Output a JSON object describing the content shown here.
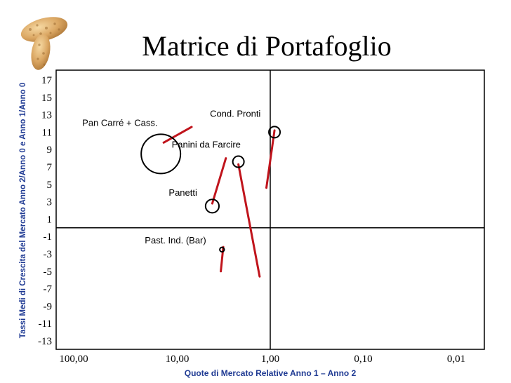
{
  "chart_data": {
    "type": "scatter",
    "title": "Matrice di Portafoglio",
    "xlabel": "Quote di Mercato Relative Anno 1 – Anno 2",
    "ylabel": "Tassi Medi di Crescita del Mercato Anno 2/Anno 0 e Anno 1/Anno 0",
    "x_scale": "log-reversed",
    "xlim": [
      100,
      0.01
    ],
    "ylim": [
      -13,
      17
    ],
    "x_ticks": [
      "100,00",
      "10,00",
      "1,00",
      "0,10",
      "0,01"
    ],
    "y_ticks": [
      "17",
      "15",
      "13",
      "11",
      "9",
      "7",
      "5",
      "3",
      "1",
      "-1",
      "-3",
      "-5",
      "-7",
      "-9",
      "-11",
      "-13"
    ],
    "quadrant_dividers": {
      "x": 1,
      "y": 0
    },
    "bubble_color": "#000000",
    "trail_color": "#c0141c",
    "series": [
      {
        "name": "Pan Carré + Cass.",
        "x": 15,
        "y": 8.5,
        "size": 3.5,
        "trail": {
          "from": [
            14,
            9.8
          ],
          "to": [
            7,
            11.6
          ]
        }
      },
      {
        "name": "Cond. Pronti",
        "x": 0.9,
        "y": 11.0,
        "size": 1.0,
        "trail": {
          "from": [
            1.1,
            4.6
          ],
          "to": [
            0.9,
            11.2
          ]
        }
      },
      {
        "name": "Panini da Farcire",
        "x": 2.2,
        "y": 7.6,
        "size": 1.0,
        "trail": {
          "from": [
            2.2,
            7.3
          ],
          "to": [
            1.3,
            -5.6
          ]
        }
      },
      {
        "name": "Panetti",
        "x": 4.2,
        "y": 2.5,
        "size": 1.2,
        "trail": {
          "from": [
            4.2,
            2.8
          ],
          "to": [
            3.0,
            8.0
          ]
        }
      },
      {
        "name": "Past. Ind. (Bar)",
        "x": 3.3,
        "y": -2.5,
        "size": 0.4,
        "trail": {
          "from": [
            3.4,
            -5.0
          ],
          "to": [
            3.2,
            -2.2
          ]
        }
      }
    ]
  }
}
